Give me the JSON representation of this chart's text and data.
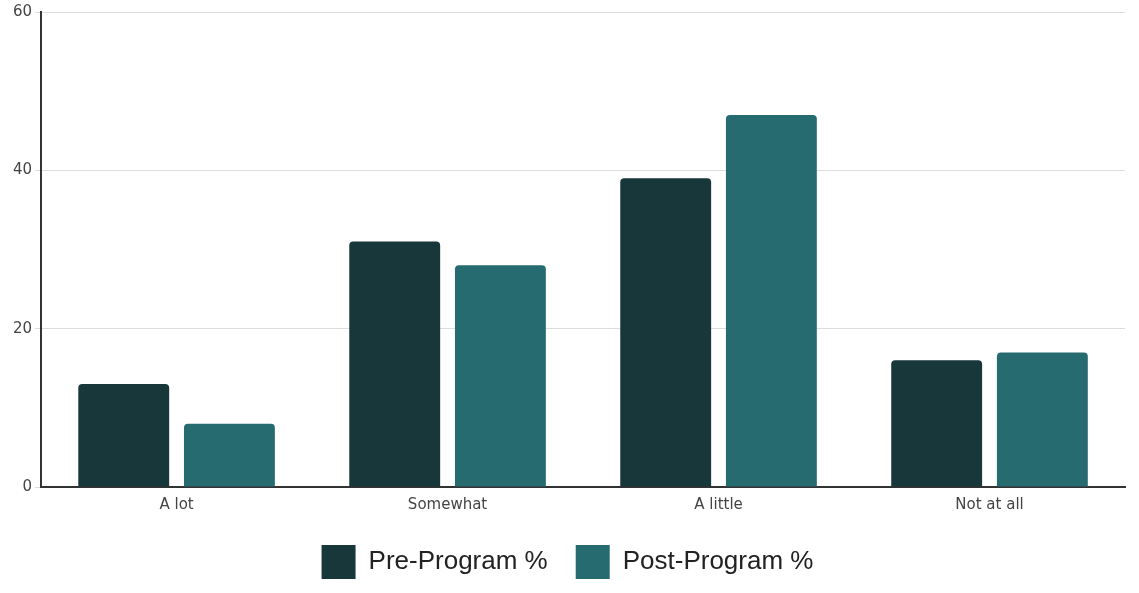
{
  "chart_data": {
    "type": "bar",
    "categories": [
      "A lot",
      "Somewhat",
      "A little",
      "Not at all"
    ],
    "series": [
      {
        "name": "Pre-Program %",
        "color": "#17373a",
        "values": [
          13,
          31,
          39,
          16
        ]
      },
      {
        "name": "Post-Program %",
        "color": "#266b70",
        "values": [
          8,
          28,
          47,
          17
        ]
      }
    ],
    "ylim": [
      0,
      60
    ],
    "yticks": [
      0,
      20,
      40,
      60
    ],
    "grid": "y",
    "legend": "bottom"
  }
}
